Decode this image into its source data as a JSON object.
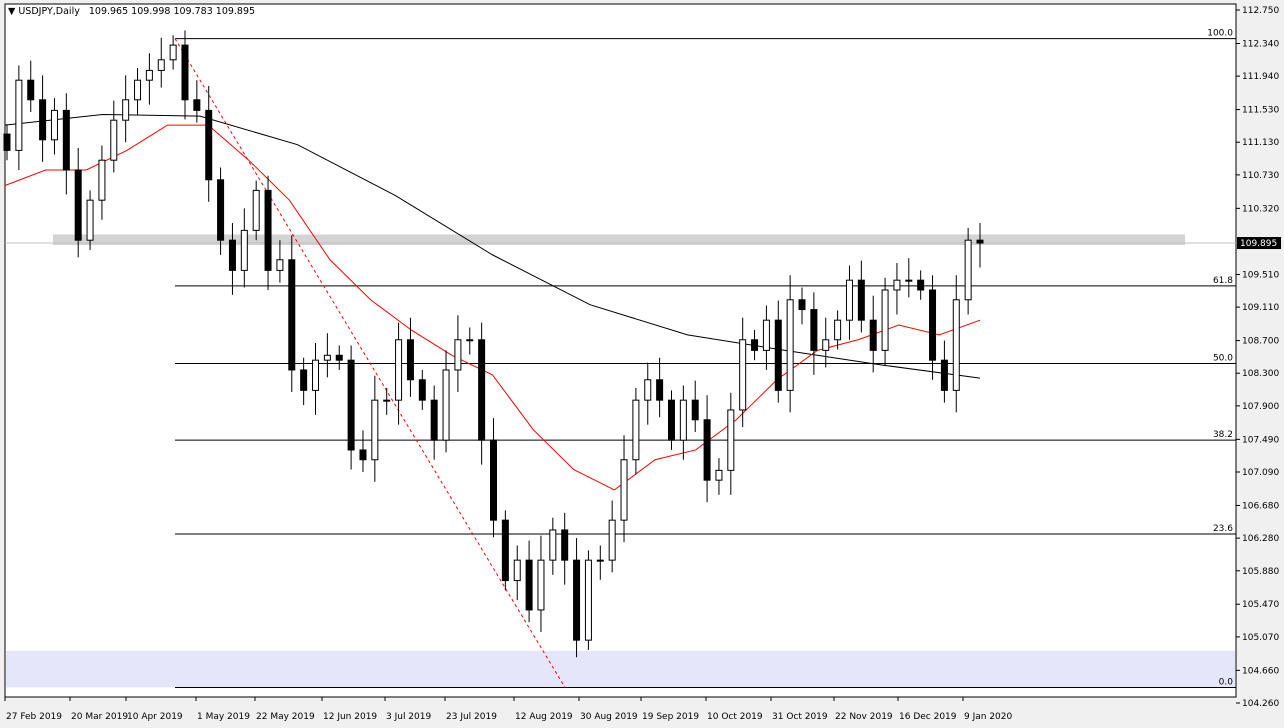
{
  "header": {
    "symbol": "USDJPY,Daily",
    "ohlc": "109.965 109.998 109.783 109.895"
  },
  "chart_data": {
    "type": "candlestick",
    "ylim": [
      104.26,
      112.75
    ],
    "y_ticks": [
      "112.750",
      "112.340",
      "111.940",
      "111.530",
      "111.130",
      "110.730",
      "110.320",
      "109.510",
      "109.110",
      "108.700",
      "108.300",
      "107.900",
      "107.490",
      "107.090",
      "106.680",
      "106.280",
      "105.880",
      "105.470",
      "105.070",
      "104.660",
      "104.260"
    ],
    "current_price": "109.895",
    "x_ticks": [
      "27 Feb 2019",
      "20 Mar 2019",
      "10 Apr 2019",
      "1 May 2019",
      "22 May 2019",
      "12 Jun 2019",
      "3 Jul 2019",
      "23 Jul 2019",
      "12 Aug 2019",
      "30 Aug 2019",
      "19 Sep 2019",
      "10 Oct 2019",
      "31 Oct 2019",
      "22 Nov 2019",
      "16 Dec 2019",
      "9 Jan 2020"
    ],
    "closes": [
      111.03,
      111.89,
      111.65,
      111.16,
      111.52,
      110.79,
      109.93,
      110.42,
      110.91,
      111.4,
      111.65,
      111.89,
      112.01,
      112.14,
      112.32,
      111.65,
      111.52,
      110.67,
      109.93,
      109.56,
      110.05,
      110.54,
      109.56,
      109.69,
      108.34,
      108.09,
      108.46,
      108.52,
      108.46,
      107.36,
      107.24,
      107.97,
      107.97,
      108.71,
      108.22,
      107.97,
      107.48,
      108.34,
      108.71,
      108.71,
      107.48,
      106.5,
      105.76,
      106.01,
      105.4,
      106.01,
      106.38,
      106.01,
      105.03,
      106.01,
      106.01,
      106.5,
      107.24,
      107.97,
      108.22,
      107.97,
      107.48,
      107.97,
      107.73,
      106.99,
      107.11,
      107.85,
      108.71,
      108.58,
      108.95,
      108.09,
      109.2,
      109.08,
      108.58,
      108.71,
      108.95,
      109.44,
      108.95,
      108.58,
      109.32,
      109.44,
      109.44,
      109.32,
      108.46,
      108.09,
      109.2,
      109.93,
      109.895
    ],
    "ma_slow": [
      111.34,
      111.47,
      111.45,
      111.1,
      110.48,
      109.75,
      109.14,
      108.77,
      108.58,
      108.4,
      108.24
    ],
    "ma_fast": [
      110.6,
      110.79,
      110.79,
      111.03,
      111.34,
      111.34,
      110.91,
      110.42,
      109.69,
      109.2,
      108.83,
      108.52,
      108.28,
      107.61,
      107.12,
      106.87,
      107.24,
      107.36,
      107.73,
      108.22,
      108.58,
      108.71,
      108.89,
      108.77,
      108.95
    ],
    "fibonacci": [
      {
        "level": "100.0",
        "price": 112.4
      },
      {
        "level": "61.8",
        "price": 109.37
      },
      {
        "level": "50.0",
        "price": 108.42
      },
      {
        "level": "38.2",
        "price": 107.48
      },
      {
        "level": "23.6",
        "price": 106.33
      },
      {
        "level": "0.0",
        "price": 104.45
      }
    ],
    "resistance_zone": [
      109.87,
      110.0
    ],
    "support_zone": [
      104.45,
      104.9
    ],
    "trendline": [
      112.4,
      104.45
    ],
    "colors": {
      "bull": "#ffffff",
      "bear": "#000000",
      "ma_fast": "#ff0000",
      "ma_slow": "#000000",
      "trendline": "#ff0000",
      "resistance_zone": "#d3d3d3",
      "support_zone": "#e6e6fa"
    }
  }
}
